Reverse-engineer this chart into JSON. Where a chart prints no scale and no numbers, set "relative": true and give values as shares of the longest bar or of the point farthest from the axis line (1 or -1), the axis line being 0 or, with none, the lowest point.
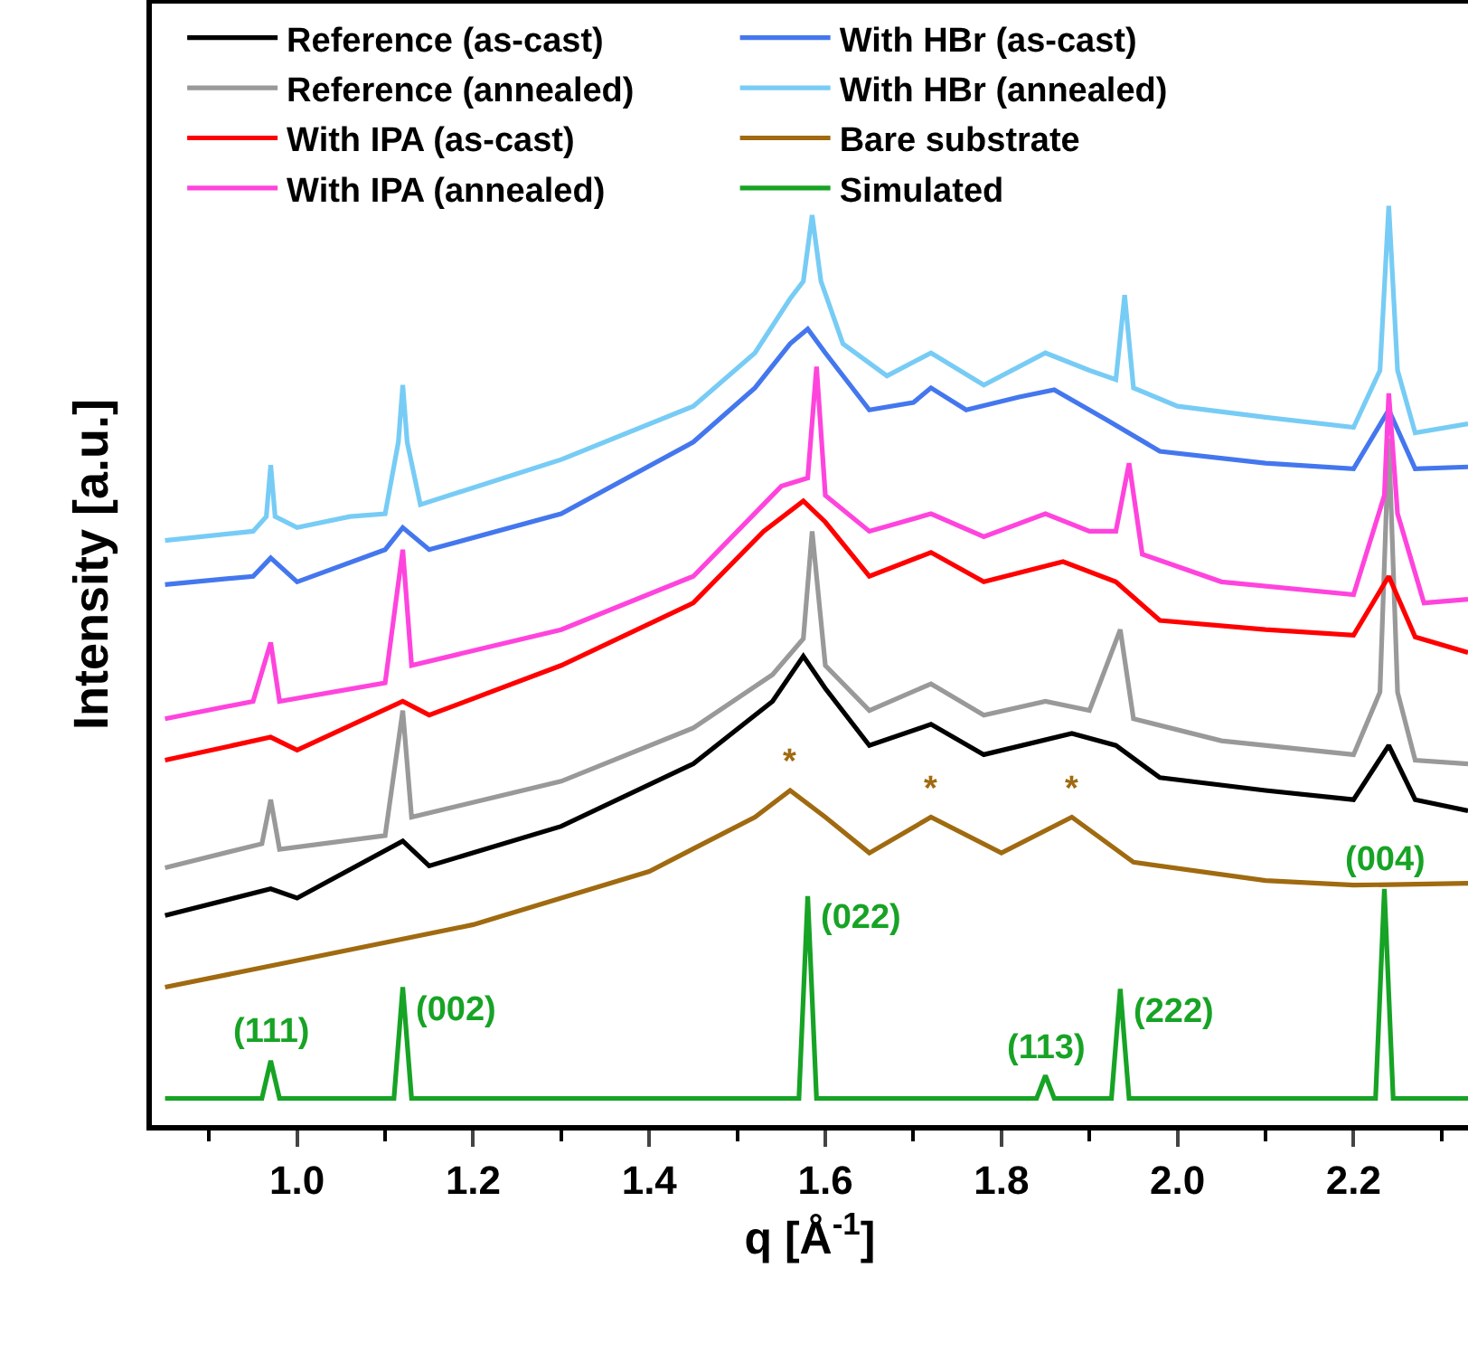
{
  "chart_data": {
    "type": "line",
    "xlabel": "q [Å$^{-1}$]",
    "ylabel": "Intensity [a.u.]",
    "relative": true,
    "grid": false,
    "legend": "top",
    "marker": "none",
    "line_style": "solid",
    "xlim": [
      0.835,
      2.33
    ],
    "xticks": [
      {
        "value": 0.9,
        "label": null
      },
      {
        "value": 1,
        "label": "1.0"
      },
      {
        "value": 1.1,
        "label": null
      },
      1.2,
      {
        "value": 1.3,
        "label": null
      },
      1.4,
      {
        "value": 1.5,
        "label": null
      },
      1.6,
      {
        "value": 1.7,
        "label": null
      },
      1.8,
      {
        "value": 1.9,
        "label": null
      },
      {
        "value": 2,
        "label": "2.0"
      },
      {
        "value": 2.1,
        "label": null
      },
      2.2,
      {
        "value": 2.3,
        "label": null
      }
    ],
    "series": [
      {
        "name": "Reference (as-cast)",
        "color": "#000000",
        "x": [
          0.85,
          0.97,
          1.0,
          1.12,
          1.15,
          1.3,
          1.45,
          1.54,
          1.575,
          1.6,
          1.65,
          1.72,
          1.78,
          1.88,
          1.93,
          1.98,
          2.1,
          2.2,
          2.24,
          2.27,
          2.33
        ],
        "values": [
          0.228,
          0.257,
          0.247,
          0.309,
          0.282,
          0.325,
          0.393,
          0.461,
          0.51,
          0.475,
          0.413,
          0.436,
          0.403,
          0.426,
          0.413,
          0.378,
          0.364,
          0.354,
          0.413,
          0.354,
          0.342
        ]
      },
      {
        "name": "Reference (annealed)",
        "color": "#999999",
        "x": [
          0.85,
          0.96,
          0.97,
          0.98,
          1.1,
          1.12,
          1.13,
          1.3,
          1.45,
          1.54,
          1.575,
          1.585,
          1.6,
          1.65,
          1.72,
          1.78,
          1.85,
          1.9,
          1.935,
          1.95,
          2.05,
          2.2,
          2.23,
          2.24,
          2.25,
          2.27,
          2.33
        ],
        "values": [
          0.28,
          0.306,
          0.354,
          0.3,
          0.315,
          0.451,
          0.335,
          0.374,
          0.432,
          0.49,
          0.529,
          0.646,
          0.5,
          0.451,
          0.48,
          0.446,
          0.461,
          0.451,
          0.539,
          0.442,
          0.418,
          0.403,
          0.471,
          0.747,
          0.471,
          0.397,
          0.393
        ]
      },
      {
        "name": "With IPA (as-cast)",
        "color": "#ff0000",
        "x": [
          0.85,
          0.97,
          1.0,
          1.12,
          1.15,
          1.3,
          1.45,
          1.53,
          1.575,
          1.6,
          1.65,
          1.72,
          1.78,
          1.87,
          1.93,
          1.98,
          2.1,
          2.2,
          2.24,
          2.27,
          2.33
        ],
        "values": [
          0.397,
          0.422,
          0.408,
          0.461,
          0.446,
          0.5,
          0.568,
          0.646,
          0.679,
          0.656,
          0.597,
          0.623,
          0.591,
          0.613,
          0.591,
          0.549,
          0.539,
          0.533,
          0.597,
          0.531,
          0.514
        ]
      },
      {
        "name": "With IPA (annealed)",
        "color": "#ff44dd",
        "x": [
          0.85,
          0.95,
          0.97,
          0.98,
          1.1,
          1.12,
          1.13,
          1.3,
          1.45,
          1.55,
          1.58,
          1.59,
          1.6,
          1.65,
          1.72,
          1.78,
          1.85,
          1.9,
          1.93,
          1.945,
          1.96,
          2.05,
          2.2,
          2.235,
          2.24,
          2.25,
          2.28,
          2.33
        ],
        "values": [
          0.442,
          0.461,
          0.525,
          0.461,
          0.481,
          0.626,
          0.5,
          0.539,
          0.597,
          0.695,
          0.704,
          0.825,
          0.685,
          0.646,
          0.665,
          0.64,
          0.665,
          0.646,
          0.646,
          0.72,
          0.621,
          0.591,
          0.577,
          0.685,
          0.796,
          0.665,
          0.568,
          0.572
        ]
      },
      {
        "name": "With HBr (as-cast)",
        "color": "#4477ee",
        "x": [
          0.85,
          0.95,
          0.97,
          1.0,
          1.1,
          1.12,
          1.15,
          1.3,
          1.45,
          1.52,
          1.56,
          1.58,
          1.6,
          1.65,
          1.7,
          1.72,
          1.76,
          1.82,
          1.86,
          1.92,
          1.98,
          2.1,
          2.2,
          2.24,
          2.27,
          2.33
        ],
        "values": [
          0.588,
          0.597,
          0.617,
          0.591,
          0.626,
          0.65,
          0.626,
          0.665,
          0.743,
          0.802,
          0.85,
          0.866,
          0.84,
          0.778,
          0.786,
          0.802,
          0.778,
          0.792,
          0.8,
          0.767,
          0.733,
          0.72,
          0.714,
          0.778,
          0.714,
          0.716
        ]
      },
      {
        "name": "With HBr (annealed)",
        "color": "#77ccf5",
        "x": [
          0.85,
          0.95,
          0.965,
          0.97,
          0.975,
          1.0,
          1.06,
          1.1,
          1.115,
          1.12,
          1.125,
          1.14,
          1.3,
          1.45,
          1.52,
          1.56,
          1.575,
          1.585,
          1.595,
          1.62,
          1.67,
          1.72,
          1.78,
          1.85,
          1.9,
          1.93,
          1.94,
          1.95,
          2.0,
          2.1,
          2.2,
          2.23,
          2.24,
          2.25,
          2.27,
          2.33
        ],
        "values": [
          0.636,
          0.646,
          0.662,
          0.718,
          0.662,
          0.65,
          0.662,
          0.665,
          0.743,
          0.805,
          0.743,
          0.675,
          0.724,
          0.782,
          0.84,
          0.899,
          0.918,
          0.99,
          0.918,
          0.85,
          0.815,
          0.84,
          0.805,
          0.84,
          0.821,
          0.811,
          0.903,
          0.802,
          0.782,
          0.77,
          0.759,
          0.821,
          1.0,
          0.821,
          0.753,
          0.763
        ]
      },
      {
        "name": "Bare substrate",
        "color": "#a06a10",
        "x": [
          0.85,
          1.0,
          1.2,
          1.4,
          1.52,
          1.56,
          1.6,
          1.65,
          1.72,
          1.8,
          1.88,
          1.95,
          2.1,
          2.2,
          2.33
        ],
        "values": [
          0.15,
          0.179,
          0.218,
          0.276,
          0.335,
          0.364,
          0.335,
          0.296,
          0.335,
          0.296,
          0.335,
          0.286,
          0.266,
          0.261,
          0.263
        ]
      },
      {
        "name": "Simulated",
        "color": "#17a325",
        "x": [
          0.85,
          0.96,
          0.97,
          0.98,
          1.11,
          1.12,
          1.13,
          1.57,
          1.58,
          1.59,
          1.84,
          1.85,
          1.86,
          1.925,
          1.935,
          1.945,
          2.225,
          2.235,
          2.245,
          2.33
        ],
        "values": [
          0.029,
          0.029,
          0.07,
          0.029,
          0.029,
          0.15,
          0.029,
          0.029,
          0.249,
          0.029,
          0.029,
          0.054,
          0.029,
          0.029,
          0.148,
          0.029,
          0.029,
          0.257,
          0.029,
          0.029
        ]
      }
    ],
    "annotations": [
      {
        "text": "(111)",
        "x": 0.97,
        "y": 0.07
      },
      {
        "text": "(002)",
        "x": 1.12,
        "y": 0.15
      },
      {
        "text": "(022)",
        "x": 1.58,
        "y": 0.249
      },
      {
        "text": "(113)",
        "x": 1.85,
        "y": 0.054
      },
      {
        "text": "(222)",
        "x": 1.935,
        "y": 0.148
      },
      {
        "text": "(004)",
        "x": 2.235,
        "y": 0.257
      },
      {
        "text": "*",
        "x": 1.56,
        "y": 0.364
      },
      {
        "text": "*",
        "x": 1.72,
        "y": 0.335
      },
      {
        "text": "*",
        "x": 1.88,
        "y": 0.335
      }
    ]
  }
}
